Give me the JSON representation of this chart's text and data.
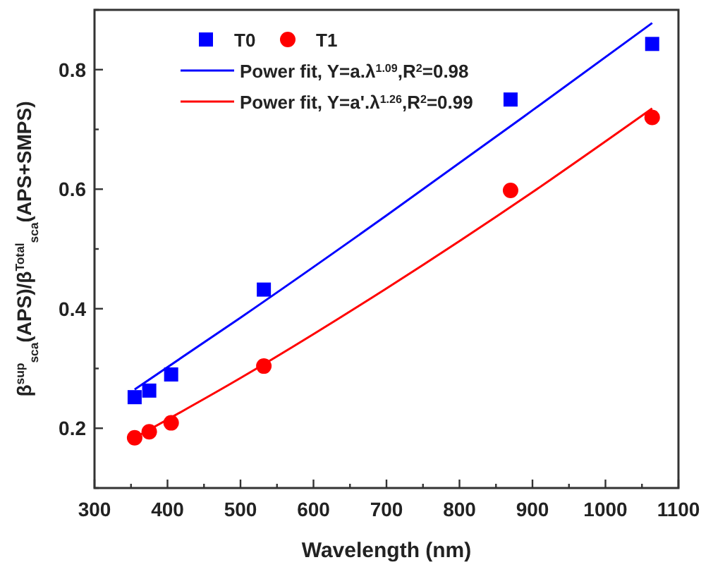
{
  "chart_data": {
    "type": "scatter",
    "xlabel": "Wavelength (nm)",
    "ylabel": "β$^{sup}$$_{sca}$(APS)/β$^{Total}$$_{sca}$(APS+SMPS)",
    "xlim": [
      300,
      1100
    ],
    "ylim": [
      0.1,
      0.9
    ],
    "xticks": [
      300,
      {
        "value": 350,
        "label": null
      },
      400,
      {
        "value": 450,
        "label": null
      },
      500,
      {
        "value": 550,
        "label": null
      },
      600,
      {
        "value": 650,
        "label": null
      },
      700,
      {
        "value": 750,
        "label": null
      },
      800,
      {
        "value": 850,
        "label": null
      },
      900,
      {
        "value": 950,
        "label": null
      },
      1000,
      {
        "value": 1050,
        "label": null
      },
      1100
    ],
    "yticks": [
      {
        "value": 0.1,
        "label": null
      },
      0.2,
      {
        "value": 0.3,
        "label": null
      },
      0.4,
      {
        "value": 0.5,
        "label": null
      },
      0.6,
      {
        "value": 0.7,
        "label": null
      },
      0.8,
      {
        "value": 0.9,
        "label": null
      }
    ],
    "grid": false,
    "legend": "top left",
    "series": [
      {
        "name": "T0",
        "marker": "square",
        "color": "#0000ff",
        "x": [
          355,
          375,
          405,
          532,
          870,
          1064
        ],
        "values": [
          0.252,
          0.263,
          0.29,
          0.432,
          0.75,
          0.843
        ]
      },
      {
        "name": "T1",
        "marker": "circle",
        "color": "#ff0000",
        "x": [
          355,
          375,
          405,
          532,
          870,
          1064
        ],
        "values": [
          0.184,
          0.194,
          0.209,
          0.304,
          0.598,
          0.72
        ]
      },
      {
        "name": "Power fit, Y=a.λ$^{1.09}$,R$^{2}$=0.98",
        "type": "line",
        "marker": "none",
        "line_style": "solid",
        "color": "#0000ff",
        "x": [
          355,
          500,
          700,
          900,
          1064
        ],
        "values": [
          0.265,
          0.385,
          0.556,
          0.732,
          0.878
        ]
      },
      {
        "name": "Power fit, Y=a'.λ$^{1.26}$,R$^{2}$=0.99",
        "type": "line",
        "marker": "none",
        "line_style": "solid",
        "color": "#ff0000",
        "x": [
          355,
          500,
          700,
          900,
          1064
        ],
        "values": [
          0.184,
          0.284,
          0.434,
          0.595,
          0.735
        ]
      }
    ]
  }
}
